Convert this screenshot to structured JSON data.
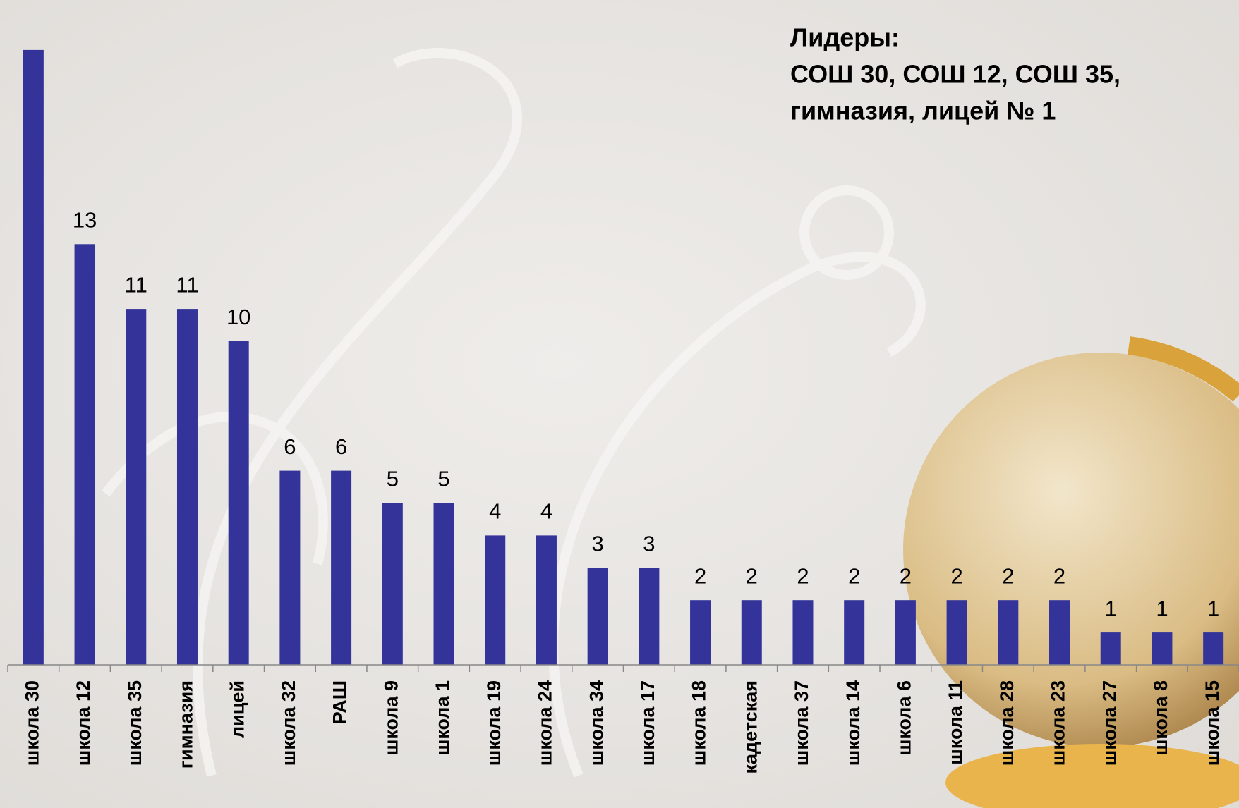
{
  "chart_data": {
    "type": "bar",
    "annotation": [
      "Лидеры:",
      "СОШ 30, СОШ 12, СОШ 35,",
      "гимназия, лицей № 1"
    ],
    "categories": [
      "школа 30",
      "школа 12",
      "школа 35",
      "гимназия",
      "лицей",
      "школа 32",
      "РАШ",
      "школа 9",
      "школа 1",
      "школа 19",
      "школа 24",
      "школа 34",
      "школа 17",
      "школа 18",
      "кадетская",
      "школа 37",
      "школа 14",
      "школа 6",
      "школа 11",
      "школа 28",
      "школа 23",
      "школа 27",
      "школа 8",
      "школа 15"
    ],
    "values": [
      19,
      13,
      11,
      11,
      10,
      6,
      6,
      5,
      5,
      4,
      4,
      3,
      3,
      2,
      2,
      2,
      2,
      2,
      2,
      2,
      2,
      1,
      1,
      1
    ],
    "value_labels": [
      null,
      "13",
      "11",
      "11",
      "10",
      "6",
      "6",
      "5",
      "5",
      "4",
      "4",
      "3",
      "3",
      "2",
      "2",
      "2",
      "2",
      "2",
      "2",
      "2",
      "2",
      "1",
      "1",
      "1"
    ],
    "color": "#333399",
    "ylim": [
      0,
      20
    ]
  }
}
